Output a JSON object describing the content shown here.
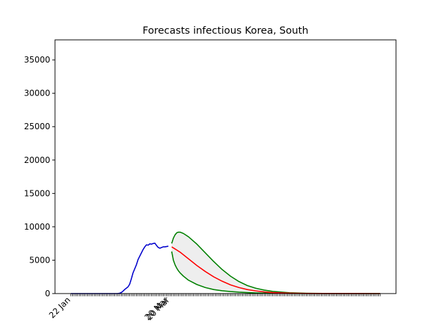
{
  "chart_data": {
    "type": "line",
    "title": "Forecasts infectious Korea, South",
    "xlabel": "",
    "ylabel": "",
    "ylim": [
      0,
      38000
    ],
    "yticks": [
      0,
      5000,
      10000,
      15000,
      20000,
      25000,
      30000,
      35000
    ],
    "x_tick_labels": [
      {
        "day": 0,
        "label": "22 Jan"
      },
      {
        "day": 58,
        "label": "20 Mar"
      },
      {
        "day": 59,
        "label": "20 Mar"
      }
    ],
    "x_range_days": [
      0,
      184
    ],
    "colors": {
      "observed": "#0000cc",
      "forecast": "#ff0000",
      "band": "#008000",
      "fill": "#eeeeee"
    },
    "series": [
      {
        "role": "observed",
        "x": [
          0,
          5,
          10,
          15,
          20,
          25,
          28,
          29,
          30,
          31,
          32,
          33,
          34,
          35,
          36,
          37,
          38,
          39,
          40,
          41,
          42,
          43,
          44,
          45,
          46,
          47,
          48,
          49,
          50,
          51,
          52,
          53,
          54,
          55,
          56,
          57,
          58
        ],
        "y": [
          0,
          0,
          0,
          0,
          0,
          0,
          10,
          50,
          150,
          350,
          600,
          800,
          1000,
          1400,
          2200,
          3100,
          3700,
          4300,
          5100,
          5600,
          6100,
          6600,
          7000,
          7300,
          7250,
          7450,
          7400,
          7500,
          7550,
          7200,
          6900,
          6800,
          6900,
          7000,
          7000,
          7050,
          7100
        ]
      },
      {
        "role": "forecast",
        "x": [
          60,
          65,
          70,
          75,
          80,
          85,
          90,
          95,
          100,
          105,
          110,
          115,
          120,
          130,
          140,
          150,
          160,
          170,
          184
        ],
        "y": [
          7000,
          6200,
          5200,
          4200,
          3300,
          2500,
          1850,
          1300,
          900,
          600,
          400,
          250,
          150,
          60,
          20,
          10,
          5,
          2,
          0
        ]
      },
      {
        "role": "upper-band",
        "x": [
          60,
          61,
          62,
          63,
          64,
          65,
          67,
          70,
          75,
          80,
          85,
          90,
          95,
          100,
          105,
          110,
          115,
          120,
          130,
          140,
          150,
          160,
          170,
          184
        ],
        "y": [
          7500,
          8300,
          8800,
          9100,
          9200,
          9200,
          9000,
          8500,
          7400,
          6100,
          4800,
          3600,
          2600,
          1800,
          1200,
          800,
          520,
          330,
          130,
          50,
          20,
          8,
          3,
          0
        ]
      },
      {
        "role": "lower-band",
        "x": [
          60,
          61,
          62,
          63,
          64,
          65,
          67,
          70,
          75,
          80,
          85,
          90,
          95,
          100,
          105,
          110,
          115,
          120,
          130,
          140,
          150,
          160,
          170,
          184
        ],
        "y": [
          6300,
          5000,
          4300,
          3800,
          3400,
          3100,
          2600,
          2000,
          1350,
          900,
          600,
          420,
          300,
          210,
          150,
          100,
          70,
          45,
          20,
          8,
          3,
          1,
          0,
          0
        ]
      }
    ]
  }
}
